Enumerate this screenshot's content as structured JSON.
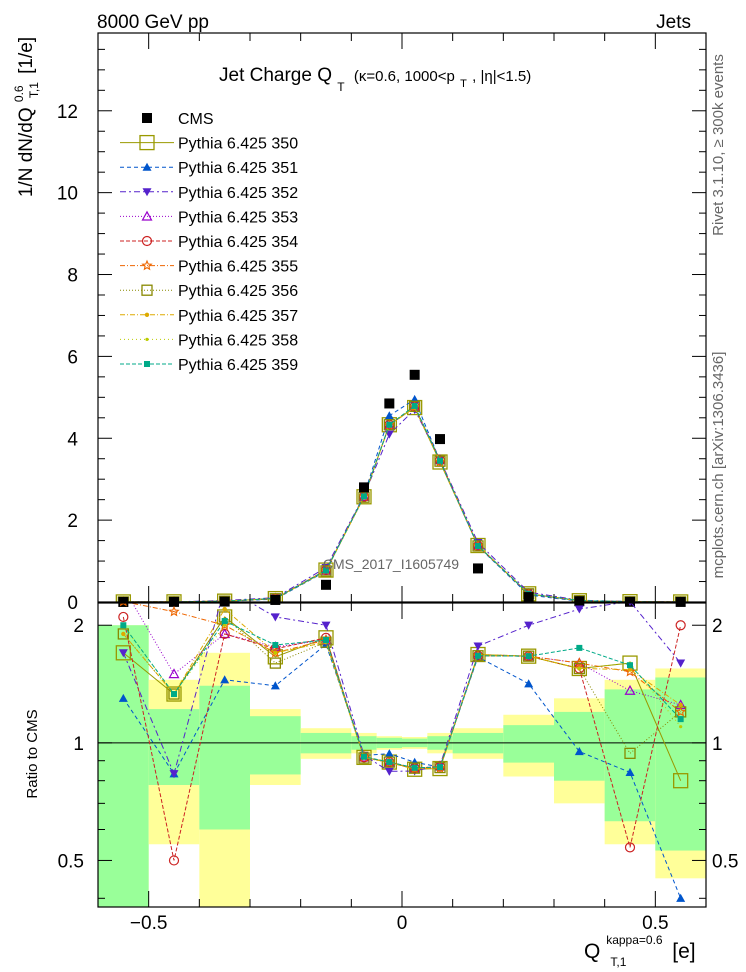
{
  "header": {
    "left": "8000 GeV pp",
    "right": "Jets"
  },
  "side_labels": {
    "rivet": "Rivet 3.1.10, ≥ 300k events",
    "mcplots": "mcplots.cern.ch [arXiv:1306.3436]"
  },
  "watermark": "CMS_2017_I1605749",
  "chart_data": {
    "type": "line",
    "title": "Jet Charge Q_T (κ=0.6, 1000<p_T, |η|<1.5)",
    "title_main": "Jet Charge Q",
    "title_sub": "T",
    "title_rest": "(κ=0.6, 1000<p",
    "title_rest_sub": "T",
    "title_tail": ", |η|<1.5)",
    "ylabel": "1/N dN/dQ",
    "ylabel_sup": "0.6",
    "ylabel_sub": "T,1",
    "ylabel_unit": "[1/e]",
    "xlabel": "Q",
    "xlabel_sup": "kappa=0.6",
    "xlabel_sub": "T,1",
    "xlabel_unit": "[e]",
    "ratio_ylabel": "Ratio to CMS",
    "xlim": [
      -0.6,
      0.6
    ],
    "ylim": [
      0,
      13.9
    ],
    "ratio_ylim": [
      0.38,
      2.28
    ],
    "x_ticks": [
      -0.5,
      0,
      0.5
    ],
    "x_tick_labels": [
      "−0.5",
      "0",
      "0.5"
    ],
    "y_ticks": [
      0,
      2,
      4,
      6,
      8,
      10,
      12
    ],
    "y_tick_labels": [
      "0",
      "2",
      "4",
      "6",
      "8",
      "10",
      "12"
    ],
    "ratio_ticks": [
      0.5,
      1,
      2
    ],
    "ratio_tick_labels": [
      "0.5",
      "1",
      "2"
    ],
    "x": [
      -0.55,
      -0.45,
      -0.35,
      -0.25,
      -0.15,
      -0.075,
      -0.025,
      0.025,
      0.075,
      0.15,
      0.25,
      0.35,
      0.45,
      0.55
    ],
    "bin_edges": [
      -0.6,
      -0.5,
      -0.4,
      -0.3,
      -0.2,
      -0.1,
      -0.05,
      0.0,
      0.05,
      0.1,
      0.2,
      0.3,
      0.4,
      0.5,
      0.6
    ],
    "cms": {
      "name": "CMS",
      "values": [
        0.001,
        0.003,
        0.01,
        0.05,
        0.42,
        2.8,
        4.85,
        5.55,
        3.98,
        0.82,
        0.12,
        0.02,
        0.005,
        0.002
      ],
      "band_inner": [
        1.0,
        0.22,
        0.4,
        0.17,
        0.06,
        0.04,
        0.03,
        0.025,
        0.04,
        0.06,
        0.11,
        0.2,
        0.37,
        0.47
      ],
      "band_outer": [
        1.0,
        0.45,
        0.7,
        0.22,
        0.09,
        0.06,
        0.04,
        0.035,
        0.06,
        0.09,
        0.18,
        0.3,
        0.45,
        0.55
      ]
    },
    "series": [
      {
        "name": "Pythia 6.425 350",
        "color": "#999900",
        "marker": "open-square-large",
        "dash": "",
        "values": [
          0.0017,
          0.004,
          0.021,
          0.083,
          0.78,
          2.57,
          4.33,
          4.75,
          3.42,
          1.38,
          0.2,
          0.031,
          0.008,
          0.0016
        ]
      },
      {
        "name": "Pythia 6.425 351",
        "color": "#0055cc",
        "marker": "triangle-up",
        "dash": "4,3",
        "values": [
          0.0013,
          0.0025,
          0.0145,
          0.07,
          0.75,
          2.6,
          4.55,
          4.95,
          3.45,
          1.36,
          0.17,
          0.019,
          0.0042,
          0.0008
        ]
      },
      {
        "name": "Pythia 6.425 352",
        "color": "#5522cc",
        "marker": "triangle-down",
        "dash": "6,3,2,3",
        "values": [
          0.0017,
          0.0025,
          0.038,
          0.105,
          0.84,
          2.6,
          4.1,
          4.7,
          3.48,
          1.45,
          0.24,
          0.044,
          0.0115,
          0.0032
        ]
      },
      {
        "name": "Pythia 6.425 353",
        "color": "#9900cc",
        "marker": "open-triangle-up",
        "dash": "1,2",
        "values": [
          0.003,
          0.0045,
          0.019,
          0.088,
          0.77,
          2.57,
          4.32,
          4.77,
          3.47,
          1.38,
          0.2,
          0.032,
          0.0068,
          0.0025
        ]
      },
      {
        "name": "Pythia 6.425 354",
        "color": "#cc2222",
        "marker": "open-circle",
        "dash": "4,2",
        "values": [
          0.0021,
          0.0015,
          0.019,
          0.087,
          0.78,
          2.57,
          4.33,
          4.78,
          3.46,
          1.37,
          0.2,
          0.031,
          0.0027,
          0.004
        ]
      },
      {
        "name": "Pythia 6.425 355",
        "color": "#ee6600",
        "marker": "open-star",
        "dash": "5,2,1,2",
        "values": [
          0.0023,
          0.0065,
          0.02,
          0.085,
          0.77,
          2.58,
          4.32,
          4.76,
          3.43,
          1.37,
          0.2,
          0.032,
          0.0076,
          0.0024
        ]
      },
      {
        "name": "Pythia 6.425 356",
        "color": "#888800",
        "marker": "open-square",
        "dash": "1,2",
        "values": [
          0.0019,
          0.004,
          0.021,
          0.08,
          0.76,
          2.56,
          4.33,
          4.78,
          3.44,
          1.37,
          0.2,
          0.031,
          0.0047,
          0.0024
        ]
      },
      {
        "name": "Pythia 6.425 357",
        "color": "#ddaa00",
        "marker": "dot",
        "dash": "5,2,1,2",
        "values": [
          0.0019,
          0.004,
          0.022,
          0.085,
          0.76,
          2.57,
          4.32,
          4.75,
          3.44,
          1.38,
          0.2,
          0.031,
          0.0077,
          0.0025
        ]
      },
      {
        "name": "Pythia 6.425 358",
        "color": "#bbcc00",
        "marker": "dot-small",
        "dash": "1,3",
        "values": [
          0.002,
          0.004,
          0.02,
          0.085,
          0.76,
          2.57,
          4.33,
          4.77,
          3.45,
          1.38,
          0.2,
          0.031,
          0.008,
          0.0022
        ]
      },
      {
        "name": "Pythia 6.425 359",
        "color": "#00aa88",
        "marker": "filled-square-small",
        "dash": "4,2",
        "values": [
          0.002,
          0.004,
          0.0205,
          0.089,
          0.77,
          2.58,
          4.33,
          4.79,
          3.45,
          1.37,
          0.2,
          0.035,
          0.0079,
          0.0023
        ]
      }
    ]
  }
}
